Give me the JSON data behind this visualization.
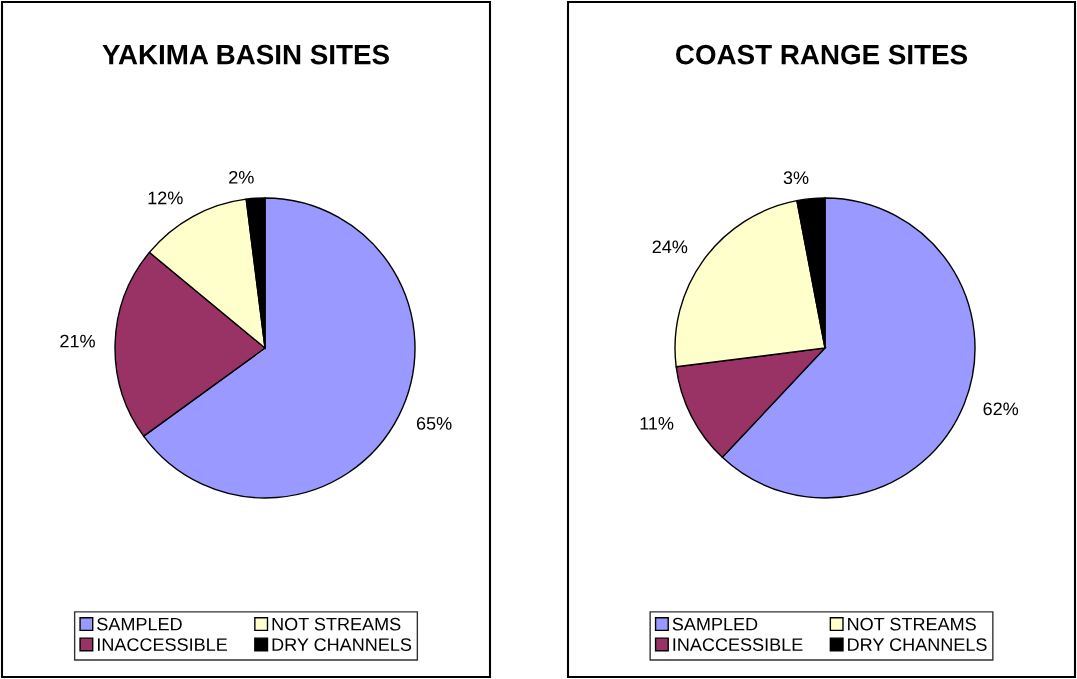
{
  "chart_data": [
    {
      "type": "pie",
      "title": "YAKIMA BASIN SITES",
      "categories": [
        "SAMPLED",
        "INACCESSIBLE",
        "NOT STREAMS",
        "DRY CHANNELS"
      ],
      "values": [
        65,
        21,
        12,
        2
      ],
      "value_labels": [
        "65%",
        "21%",
        "12%",
        "2%"
      ],
      "colors": [
        "#9999ff",
        "#993366",
        "#ffffcc",
        "#000000"
      ],
      "legend": "bottom"
    },
    {
      "type": "pie",
      "title": "COAST RANGE SITES",
      "categories": [
        "SAMPLED",
        "INACCESSIBLE",
        "NOT STREAMS",
        "DRY CHANNELS"
      ],
      "values": [
        62,
        11,
        24,
        3
      ],
      "value_labels": [
        "62%",
        "11%",
        "24%",
        "3%"
      ],
      "colors": [
        "#9999ff",
        "#993366",
        "#ffffcc",
        "#000000"
      ],
      "legend": "bottom"
    }
  ]
}
